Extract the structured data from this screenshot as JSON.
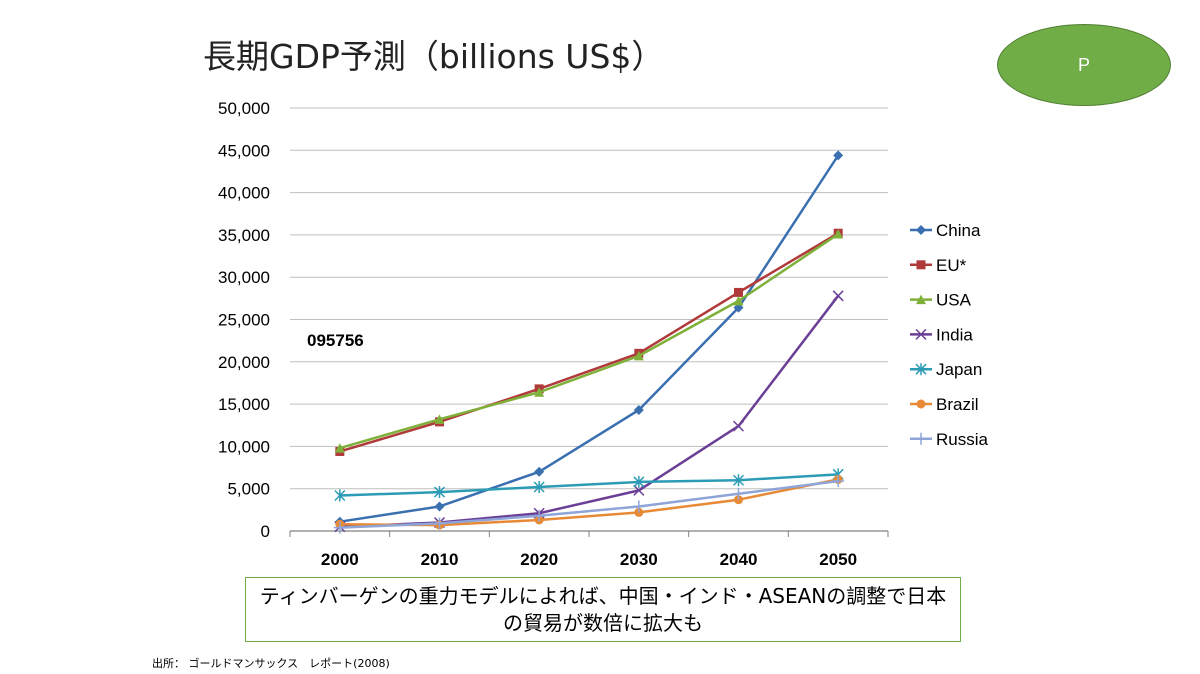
{
  "header": {
    "title": "長期GDP予測（billions US$）",
    "badge_label": "P"
  },
  "chart_data": {
    "type": "line",
    "title": "長期GDP予測（billions US$）",
    "xlabel": "",
    "ylabel": "",
    "categories": [
      "2000",
      "2010",
      "2020",
      "2030",
      "2040",
      "2050"
    ],
    "ylim": [
      0,
      50000
    ],
    "yticks": [
      0,
      5000,
      10000,
      15000,
      20000,
      25000,
      30000,
      35000,
      40000,
      45000,
      50000
    ],
    "ytick_labels": [
      "0",
      "5,000",
      "10,000",
      "15,000",
      "20,000",
      "25,000",
      "30,000",
      "35,000",
      "40,000",
      "45,000",
      "50,000"
    ],
    "grid": "horizontal",
    "legend_position": "right",
    "series": [
      {
        "name": "China",
        "color": "#3a6fb0",
        "marker": "diamond",
        "values": [
          1100,
          2900,
          7000,
          14300,
          26400,
          44400
        ]
      },
      {
        "name": "EU*",
        "color": "#b03a3a",
        "marker": "square",
        "values": [
          9400,
          12900,
          16800,
          21000,
          28200,
          35200
        ]
      },
      {
        "name": "USA",
        "color": "#7fb03a",
        "marker": "triangle",
        "values": [
          9800,
          13200,
          16400,
          20700,
          27200,
          35100
        ]
      },
      {
        "name": "India",
        "color": "#6a3f95",
        "marker": "x",
        "values": [
          500,
          1000,
          2100,
          4800,
          12400,
          27800
        ]
      },
      {
        "name": "Japan",
        "color": "#2c9bb5",
        "marker": "asterisk",
        "values": [
          4200,
          4600,
          5200,
          5800,
          6000,
          6700
        ]
      },
      {
        "name": "Brazil",
        "color": "#e88a35",
        "marker": "circle",
        "values": [
          800,
          700,
          1300,
          2200,
          3700,
          6100
        ]
      },
      {
        "name": "Russia",
        "color": "#8fa5d8",
        "marker": "plus",
        "values": [
          400,
          900,
          1800,
          2900,
          4400,
          5900
        ]
      }
    ],
    "annotations": [
      "095756"
    ]
  },
  "note": {
    "text": "ティンバーゲンの重力モデルによれば、中国・インド・ASEANの調整で日本の貿易が数倍に拡大も"
  },
  "source": {
    "text": "出所： ゴールドマンサックス　レポート(2008)"
  }
}
